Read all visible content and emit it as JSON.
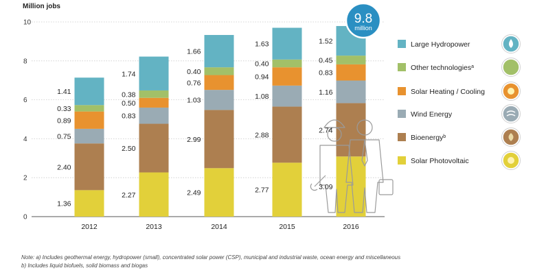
{
  "chart_data": {
    "type": "bar",
    "stacked": true,
    "title": "",
    "ylabel": "Million jobs",
    "xlabel": "",
    "ylim": [
      0,
      10
    ],
    "yticks": [
      "0",
      "2",
      "4",
      "6",
      "8",
      "10"
    ],
    "categories": [
      "2012",
      "2013",
      "2014",
      "2015",
      "2016"
    ],
    "series": [
      {
        "name": "Solar Photovoltaic",
        "color": "#e2d03a",
        "icon": "sun-icon",
        "values": [
          1.36,
          2.27,
          2.49,
          2.77,
          3.09
        ]
      },
      {
        "name": "Bioenergy",
        "superscript": "b",
        "color": "#ad7f50",
        "icon": "leaf-drop-icon",
        "values": [
          2.4,
          2.5,
          2.99,
          2.88,
          2.74
        ]
      },
      {
        "name": "Wind Energy",
        "color": "#9aabb4",
        "icon": "wind-icon",
        "values": [
          0.75,
          0.83,
          1.03,
          1.08,
          1.16
        ]
      },
      {
        "name": "Solar Heating / Cooling",
        "color": "#e8922f",
        "icon": "sun-heat-icon",
        "values": [
          0.89,
          0.5,
          0.76,
          0.94,
          0.83
        ]
      },
      {
        "name": "Other technologies",
        "superscript": "a",
        "color": "#a2c068",
        "icon": "globe-icon",
        "values": [
          0.33,
          0.38,
          0.4,
          0.4,
          0.45
        ]
      },
      {
        "name": "Large Hydropower",
        "color": "#63b3c3",
        "icon": "water-drop-icon",
        "values": [
          1.41,
          1.74,
          1.66,
          1.63,
          1.52
        ]
      }
    ],
    "labels": [
      [
        "1.36",
        "2.40",
        "0.75",
        "0.89",
        "0.33",
        "1.41"
      ],
      [
        "2.27",
        "2.50",
        "0.83",
        "0.50",
        "0.38",
        "1.74"
      ],
      [
        "2.49",
        "2.99",
        "1.03",
        "0.76",
        "0.40",
        "1.66"
      ],
      [
        "2.77",
        "2.88",
        "1.08",
        "0.94",
        "0.40",
        "1.63"
      ],
      [
        "3.09",
        "2.74",
        "1.16",
        "0.83",
        "0.45",
        "1.52"
      ]
    ],
    "badge": {
      "value": "9.8",
      "unit": "million",
      "color": "#2a8fc2"
    },
    "legend_order": [
      "Large Hydropower",
      "Other technologies",
      "Solar Heating / Cooling",
      "Wind Energy",
      "Bioenergy",
      "Solar Photovoltaic"
    ],
    "legend_labels": [
      "Large Hydropower",
      "Other technologies",
      "Solar Heating / Cooling",
      "Wind Energy",
      "Bioenergy",
      "Solar Photovoltaic"
    ]
  },
  "notes": {
    "a": "Note: a) Includes geothermal energy, hydropower (small), concentrated solar power (CSP), municipal and industrial waste, ocean energy and miscellaneous",
    "b": "b) Includes liquid biofuels, solid biomass and biogas"
  }
}
